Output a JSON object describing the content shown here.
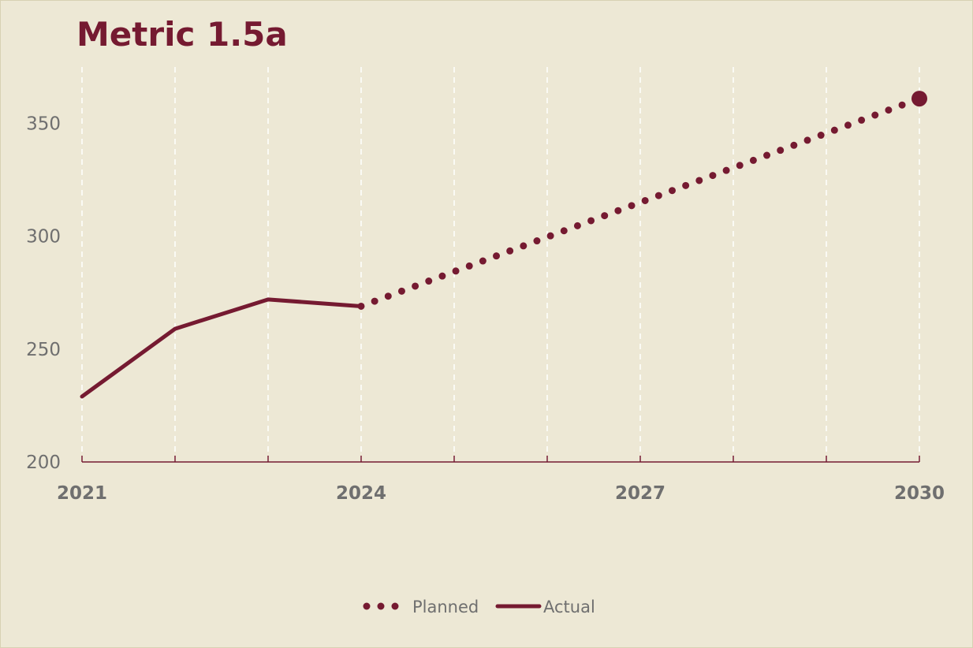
{
  "chart_data": {
    "type": "line",
    "title": "Metric 1.5a",
    "xlabel": "",
    "ylabel": "",
    "xlim": [
      2021,
      2030
    ],
    "ylim": [
      200,
      375
    ],
    "x_ticks": [
      2021,
      2024,
      2027,
      2030
    ],
    "y_ticks": [
      200,
      250,
      300,
      350
    ],
    "grid": "vertical-dashed",
    "legend_position": "bottom-center",
    "colors": {
      "background": "#EDE8D5",
      "series": "#751A31",
      "grid": "#FFFFFF",
      "text": "#6F6F6F"
    },
    "series": [
      {
        "name": "Planned",
        "style": "dotted",
        "x": [
          2024,
          2030
        ],
        "y": [
          269,
          361
        ]
      },
      {
        "name": "Actual",
        "style": "solid",
        "x": [
          2021,
          2022,
          2023,
          2024
        ],
        "y": [
          229,
          259,
          272,
          269
        ]
      }
    ]
  }
}
